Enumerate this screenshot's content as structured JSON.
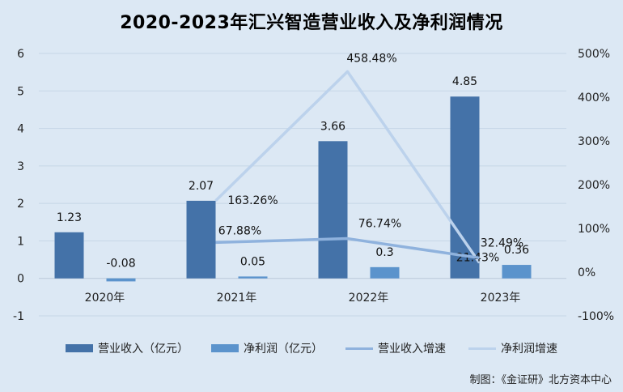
{
  "title": "2020-2023年汇兴智造营业收入及净利润情况",
  "credit": "制图：《金证研》北方资本中心",
  "colors": {
    "revenue": "#4472a8",
    "profit": "#5b93cc",
    "revenue_growth": "#8fb2dd",
    "profit_growth": "#bcd2ec",
    "grid": "#c6d6e6"
  },
  "chart_data": {
    "type": "bar",
    "categories": [
      "2020年",
      "2021年",
      "2022年",
      "2023年"
    ],
    "left_axis": {
      "ylim": [
        -1,
        6
      ],
      "ticks": [
        "-1",
        "0",
        "1",
        "2",
        "3",
        "4",
        "5",
        "6"
      ]
    },
    "right_axis": {
      "ylim": [
        -100,
        500
      ],
      "ticks": [
        "-100%",
        "0%",
        "100%",
        "200%",
        "300%",
        "400%",
        "500%"
      ]
    },
    "grid": true,
    "legend_position": "bottom",
    "series": [
      {
        "name": "营业收入（亿元）",
        "kind": "bar",
        "axis": "left",
        "values": [
          1.23,
          2.07,
          3.66,
          4.85
        ],
        "labels": [
          "1.23",
          "2.07",
          "3.66",
          "4.85"
        ]
      },
      {
        "name": "净利润（亿元）",
        "kind": "bar",
        "axis": "left",
        "values": [
          -0.08,
          0.05,
          0.3,
          0.36
        ],
        "labels": [
          "-0.08",
          "0.05",
          "0.3",
          "0.36"
        ]
      },
      {
        "name": "营业收入增速",
        "kind": "line",
        "axis": "right",
        "values": [
          null,
          67.88,
          76.74,
          32.49
        ],
        "labels": [
          "",
          "67.88%",
          "76.74%",
          "32.49%"
        ]
      },
      {
        "name": "净利润增速",
        "kind": "line",
        "axis": "right",
        "values": [
          null,
          163.26,
          458.48,
          21.43
        ],
        "labels": [
          "",
          "163.26%",
          "458.48%",
          "21.43%"
        ]
      }
    ]
  }
}
